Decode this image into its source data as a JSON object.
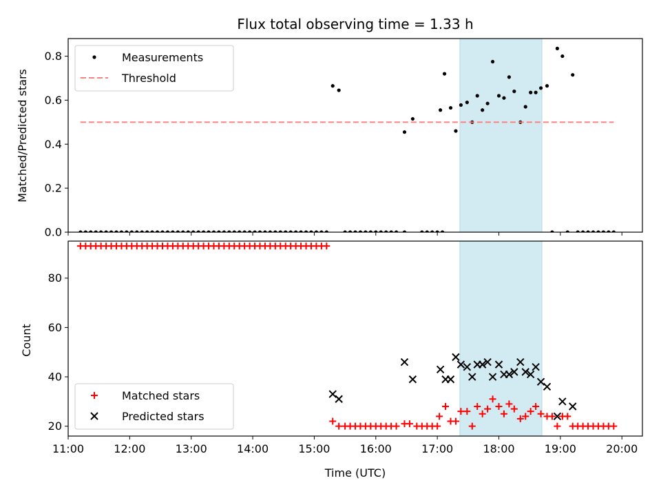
{
  "chart_data": [
    {
      "type": "scatter",
      "title": "Flux total observing time = 1.33 h",
      "ylabel": "Matched/Predicted stars",
      "xlabel": "",
      "xlim": [
        "11:00",
        "20:20"
      ],
      "ylim": [
        0,
        0.88
      ],
      "yticks": [
        0.0,
        0.2,
        0.4,
        0.6,
        0.8
      ],
      "grid": false,
      "legend_position": "top-left",
      "highlight_span": {
        "start": "17:22",
        "end": "18:42",
        "color": "#add8e6"
      },
      "series": [
        {
          "name": "Measurements",
          "marker": "dot",
          "color": "#000000",
          "points": [
            [
              "15:18",
              0.665
            ],
            [
              "15:24",
              0.645
            ],
            [
              "16:28",
              0.455
            ],
            [
              "16:36",
              0.515
            ],
            [
              "17:03",
              0.555
            ],
            [
              "17:07",
              0.72
            ],
            [
              "17:13",
              0.565
            ],
            [
              "17:18",
              0.46
            ],
            [
              "17:23",
              0.578
            ],
            [
              "17:29",
              0.59
            ],
            [
              "17:34",
              0.5
            ],
            [
              "17:39",
              0.62
            ],
            [
              "17:44",
              0.555
            ],
            [
              "17:49",
              0.585
            ],
            [
              "17:54",
              0.775
            ],
            [
              "18:00",
              0.62
            ],
            [
              "18:05",
              0.61
            ],
            [
              "18:10",
              0.705
            ],
            [
              "18:15",
              0.64
            ],
            [
              "18:21",
              0.5
            ],
            [
              "18:26",
              0.57
            ],
            [
              "18:31",
              0.635
            ],
            [
              "18:36",
              0.635
            ],
            [
              "18:41",
              0.655
            ],
            [
              "18:47",
              0.665
            ],
            [
              "18:52",
              0.0
            ],
            [
              "18:57",
              0.835
            ],
            [
              "19:02",
              0.8
            ],
            [
              "19:07",
              0.0
            ],
            [
              "19:12",
              0.715
            ]
          ],
          "zero_runs": [
            {
              "start": "11:12",
              "end": "15:13",
              "step_min": 5
            },
            {
              "start": "15:30",
              "end": "16:23",
              "step_min": 5
            },
            {
              "start": "16:28",
              "end": "16:28",
              "step_min": 5
            },
            {
              "start": "16:45",
              "end": "17:06",
              "step_min": 5
            },
            {
              "start": "19:17",
              "end": "19:53",
              "step_min": 5
            }
          ]
        },
        {
          "name": "Threshold",
          "marker": "dashed-line",
          "color": "#ff7f7f",
          "points": [
            [
              "11:12",
              0.5
            ],
            [
              "19:52",
              0.5
            ]
          ]
        }
      ]
    },
    {
      "type": "scatter",
      "title": "",
      "ylabel": "Count",
      "xlabel": "Time (UTC)",
      "xlim": [
        "11:00",
        "20:20"
      ],
      "ylim": [
        16,
        95
      ],
      "xticks": [
        "11:00",
        "12:00",
        "13:00",
        "14:00",
        "15:00",
        "16:00",
        "17:00",
        "18:00",
        "19:00",
        "20:00"
      ],
      "yticks": [
        20,
        40,
        60,
        80
      ],
      "grid": false,
      "legend_position": "bottom-left",
      "highlight_span": {
        "start": "17:22",
        "end": "18:42",
        "color": "#add8e6"
      },
      "series": [
        {
          "name": "Matched stars",
          "marker": "plus",
          "color": "#ff0000",
          "runs": [
            {
              "start": "11:12",
              "end": "15:13",
              "step_min": 5,
              "value": 93
            },
            {
              "start": "15:30",
              "end": "16:23",
              "step_min": 5,
              "value": 20
            },
            {
              "start": "16:45",
              "end": "17:02",
              "step_min": 5,
              "value": 20
            },
            {
              "start": "19:12",
              "end": "19:52",
              "step_min": 5,
              "value": 20
            }
          ],
          "points": [
            [
              "15:18",
              22
            ],
            [
              "15:24",
              20
            ],
            [
              "16:28",
              21
            ],
            [
              "16:33",
              21
            ],
            [
              "16:40",
              20
            ],
            [
              "17:02",
              24
            ],
            [
              "17:08",
              28
            ],
            [
              "17:13",
              22
            ],
            [
              "17:18",
              22
            ],
            [
              "17:23",
              26
            ],
            [
              "17:29",
              26
            ],
            [
              "17:34",
              20
            ],
            [
              "17:39",
              28
            ],
            [
              "17:44",
              25
            ],
            [
              "17:49",
              27
            ],
            [
              "17:54",
              31
            ],
            [
              "18:00",
              28
            ],
            [
              "18:05",
              25
            ],
            [
              "18:10",
              29
            ],
            [
              "18:15",
              27
            ],
            [
              "18:21",
              23
            ],
            [
              "18:26",
              24
            ],
            [
              "18:31",
              26
            ],
            [
              "18:36",
              28
            ],
            [
              "18:41",
              25
            ],
            [
              "18:47",
              24
            ],
            [
              "18:52",
              24
            ],
            [
              "18:57",
              20
            ],
            [
              "19:02",
              24
            ],
            [
              "19:07",
              24
            ]
          ]
        },
        {
          "name": "Predicted stars",
          "marker": "x",
          "color": "#000000",
          "points": [
            [
              "15:18",
              33
            ],
            [
              "15:24",
              31
            ],
            [
              "16:28",
              46
            ],
            [
              "16:36",
              39
            ],
            [
              "17:03",
              43
            ],
            [
              "17:08",
              39
            ],
            [
              "17:13",
              39
            ],
            [
              "17:18",
              48
            ],
            [
              "17:23",
              45
            ],
            [
              "17:29",
              44
            ],
            [
              "17:34",
              40
            ],
            [
              "17:39",
              45
            ],
            [
              "17:44",
              45
            ],
            [
              "17:49",
              46
            ],
            [
              "17:54",
              40
            ],
            [
              "18:00",
              45
            ],
            [
              "18:05",
              41
            ],
            [
              "18:10",
              41
            ],
            [
              "18:15",
              42
            ],
            [
              "18:21",
              46
            ],
            [
              "18:26",
              42
            ],
            [
              "18:31",
              41
            ],
            [
              "18:36",
              44
            ],
            [
              "18:41",
              38
            ],
            [
              "18:47",
              36
            ],
            [
              "18:57",
              24
            ],
            [
              "19:02",
              30
            ],
            [
              "19:12",
              28
            ]
          ]
        }
      ]
    }
  ]
}
